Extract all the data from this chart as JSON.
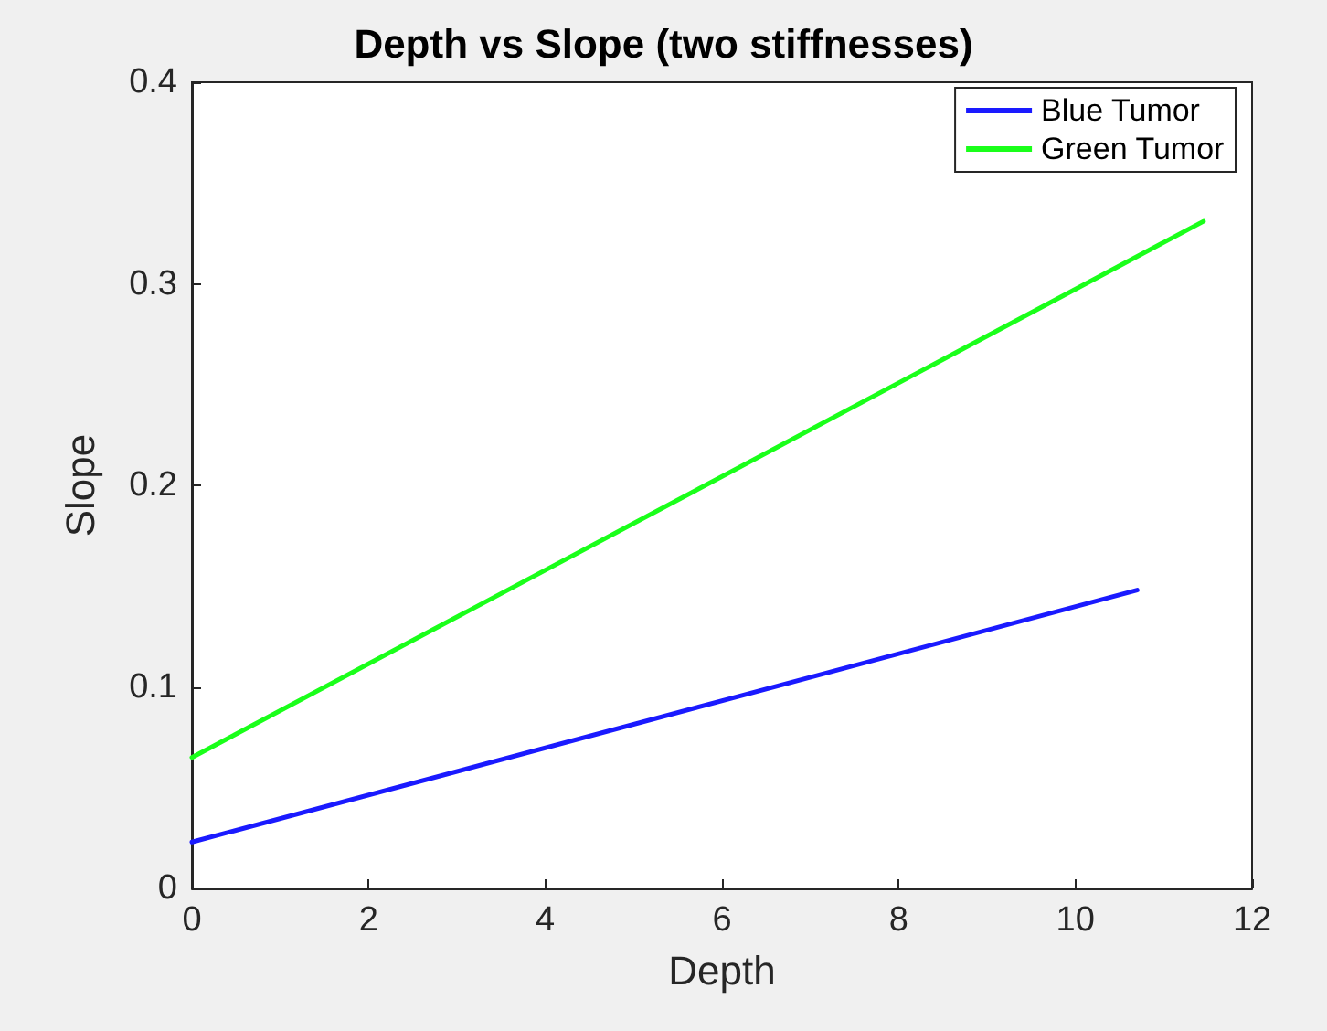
{
  "chart_data": {
    "type": "line",
    "title": "Depth vs Slope (two stiffnesses)",
    "xlabel": "Depth",
    "ylabel": "Slope",
    "xlim": [
      0,
      12
    ],
    "xticks": [
      0,
      2,
      4,
      6,
      8,
      10,
      12
    ],
    "ylim": [
      0,
      0.4
    ],
    "yticks": [
      0,
      0.1,
      0.2,
      0.3,
      0.4
    ],
    "grid": false,
    "legend": "top right",
    "marker": "none",
    "line_style": "solid",
    "series": [
      {
        "name": "Blue Tumor",
        "color": "#1a1aff",
        "x": [
          0,
          10.7
        ],
        "values": [
          0.023,
          0.148
        ]
      },
      {
        "name": "Green Tumor",
        "color": "#1aff1a",
        "x": [
          0,
          11.45
        ],
        "values": [
          0.065,
          0.331
        ]
      }
    ]
  }
}
